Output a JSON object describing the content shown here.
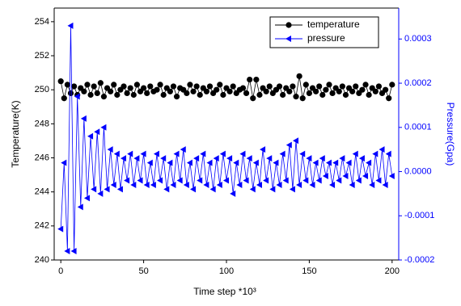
{
  "chart_data": {
    "type": "line",
    "xlabel": "Time step *10³",
    "ylabel": "Temperature(K)",
    "y2label": "Pressure(Gpa)",
    "x": [
      0,
      2,
      4,
      6,
      8,
      10,
      12,
      14,
      16,
      18,
      20,
      22,
      24,
      26,
      28,
      30,
      32,
      34,
      36,
      38,
      40,
      42,
      44,
      46,
      48,
      50,
      52,
      54,
      56,
      58,
      60,
      62,
      64,
      66,
      68,
      70,
      72,
      74,
      76,
      78,
      80,
      82,
      84,
      86,
      88,
      90,
      92,
      94,
      96,
      98,
      100,
      102,
      104,
      106,
      108,
      110,
      112,
      114,
      116,
      118,
      120,
      122,
      124,
      126,
      128,
      130,
      132,
      134,
      136,
      138,
      140,
      142,
      144,
      146,
      148,
      150,
      152,
      154,
      156,
      158,
      160,
      162,
      164,
      166,
      168,
      170,
      172,
      174,
      176,
      178,
      180,
      182,
      184,
      186,
      188,
      190,
      192,
      194,
      196,
      198,
      200
    ],
    "series": [
      {
        "name": "temperature",
        "color": "#000000",
        "marker": "circle",
        "values": [
          250.5,
          249.5,
          250.3,
          249.8,
          250.2,
          249.7,
          250.1,
          249.9,
          250.3,
          249.7,
          250.2,
          249.8,
          250.4,
          249.6,
          250.1,
          249.9,
          250.3,
          249.7,
          250.0,
          250.2,
          249.8,
          250.1,
          249.7,
          250.3,
          249.9,
          250.1,
          249.8,
          250.2,
          249.9,
          250.0,
          250.3,
          249.7,
          250.1,
          249.9,
          250.2,
          249.6,
          250.1,
          250.0,
          249.8,
          250.3,
          249.9,
          250.2,
          249.7,
          250.1,
          249.9,
          250.2,
          249.8,
          250.0,
          250.3,
          249.7,
          250.1,
          249.9,
          250.2,
          249.8,
          250.0,
          250.1,
          249.8,
          250.6,
          249.5,
          250.6,
          249.7,
          250.1,
          249.9,
          250.2,
          249.8,
          250.0,
          250.2,
          249.7,
          250.1,
          249.9,
          250.2,
          249.6,
          250.8,
          249.5,
          250.3,
          249.8,
          250.1,
          249.9,
          250.2,
          249.7,
          250.0,
          250.3,
          249.8,
          250.1,
          249.9,
          250.2,
          249.7,
          250.1,
          249.9,
          250.2,
          249.8,
          250.0,
          250.3,
          249.7,
          250.1,
          249.9,
          250.2,
          249.8,
          250.0,
          249.5,
          250.3
        ]
      },
      {
        "name": "pressure",
        "color": "#0000ff",
        "marker": "triangle-left",
        "axis": "y2",
        "values": [
          -0.00013,
          2e-05,
          -0.00018,
          0.00033,
          -0.00018,
          0.00017,
          -8e-05,
          0.00012,
          -6e-05,
          8e-05,
          -4e-05,
          9e-05,
          -5e-05,
          0.0001,
          -4e-05,
          5e-05,
          -3e-05,
          4e-05,
          -4e-05,
          3e-05,
          -2e-05,
          4e-05,
          -3e-05,
          3e-05,
          -2e-05,
          4e-05,
          -3e-05,
          2e-05,
          -3e-05,
          4e-05,
          -2e-05,
          3e-05,
          -4e-05,
          2e-05,
          -3e-05,
          4e-05,
          -2e-05,
          5e-05,
          -3e-05,
          2e-05,
          -4e-05,
          3e-05,
          -2e-05,
          4e-05,
          -3e-05,
          2e-05,
          -4e-05,
          3e-05,
          -3e-05,
          4e-05,
          -2e-05,
          3e-05,
          -5e-05,
          2e-05,
          -3e-05,
          4e-05,
          -2e-05,
          3e-05,
          -4e-05,
          2e-05,
          -3e-05,
          5e-05,
          -2e-05,
          3e-05,
          -4e-05,
          2e-05,
          -3e-05,
          4e-05,
          -2e-05,
          6e-05,
          -4e-05,
          7e-05,
          -3e-05,
          4e-05,
          -2e-05,
          3e-05,
          -3e-05,
          2e-05,
          -2e-05,
          3e-05,
          -1e-05,
          2e-05,
          -3e-05,
          2e-05,
          -2e-05,
          3e-05,
          -1e-05,
          2e-05,
          -3e-05,
          4e-05,
          -2e-05,
          3e-05,
          -1e-05,
          2e-05,
          -3e-05,
          4e-05,
          -2e-05,
          5e-05,
          -3e-05,
          4e-05,
          -1e-05
        ]
      }
    ],
    "xlim": [
      -4,
      204
    ],
    "xticks": [
      0,
      50,
      100,
      150,
      200
    ],
    "ylim": [
      240,
      254.8
    ],
    "yticks": [
      240,
      242,
      244,
      246,
      248,
      250,
      252,
      254
    ],
    "y2lim": [
      -0.0002,
      0.00037
    ],
    "y2ticks": [
      {
        "value": -0.0002,
        "label": "-0.0002"
      },
      {
        "value": -0.0001,
        "label": "-0.0001"
      },
      {
        "value": 0,
        "label": "0.0000"
      },
      {
        "value": 0.0001,
        "label": "0.0001"
      },
      {
        "value": 0.0002,
        "label": "0.0002"
      },
      {
        "value": 0.0003,
        "label": "0.0003"
      }
    ],
    "y2color": "#0000ff",
    "legend": "upper right"
  }
}
